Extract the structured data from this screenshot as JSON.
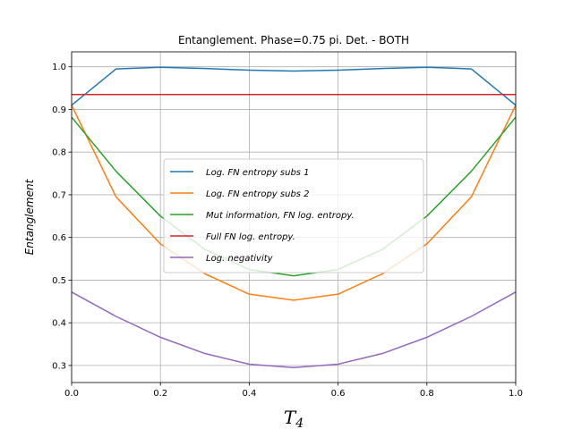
{
  "chart_data": {
    "type": "line",
    "title": "Entanglement. Phase=0.75 pi. Det. - BOTH",
    "xlabel_main": "T",
    "xlabel_sub": "4",
    "ylabel": "Entanglement",
    "xlim": [
      0.0,
      1.0
    ],
    "ylim": [
      0.26,
      1.035
    ],
    "xticks": [
      0.0,
      0.2,
      0.4,
      0.6,
      0.8,
      1.0
    ],
    "xtick_labels": [
      "0.0",
      "0.2",
      "0.4",
      "0.6",
      "0.8",
      "1.0"
    ],
    "yticks": [
      0.3,
      0.4,
      0.5,
      0.6,
      0.7,
      0.8,
      0.9,
      1.0
    ],
    "ytick_labels": [
      "0.3",
      "0.4",
      "0.5",
      "0.6",
      "0.7",
      "0.8",
      "0.9",
      "1.0"
    ],
    "grid": true,
    "legend_position": "center-left",
    "x": [
      0.0,
      0.1,
      0.2,
      0.3,
      0.4,
      0.5,
      0.6,
      0.7,
      0.8,
      0.9,
      1.0
    ],
    "series": [
      {
        "name": "Log. FN entropy subs 1",
        "color": "#1f77b4",
        "values": [
          0.91,
          0.995,
          0.999,
          0.996,
          0.992,
          0.99,
          0.992,
          0.996,
          0.999,
          0.995,
          0.91
        ]
      },
      {
        "name": "Log. FN entropy subs 2",
        "color": "#ff7f0e",
        "values": [
          0.91,
          0.695,
          0.585,
          0.515,
          0.467,
          0.453,
          0.467,
          0.515,
          0.585,
          0.695,
          0.91
        ]
      },
      {
        "name": "Mut information, FN log. entropy.",
        "color": "#2ca02c",
        "values": [
          0.882,
          0.755,
          0.65,
          0.572,
          0.525,
          0.51,
          0.525,
          0.572,
          0.65,
          0.755,
          0.882
        ]
      },
      {
        "name": "Full FN log. entropy.",
        "color": "#d62728",
        "values": [
          0.935,
          0.935,
          0.935,
          0.935,
          0.935,
          0.935,
          0.935,
          0.935,
          0.935,
          0.935,
          0.935
        ]
      },
      {
        "name": "Log. negativity",
        "color": "#9467bd",
        "values": [
          0.472,
          0.415,
          0.366,
          0.328,
          0.303,
          0.295,
          0.303,
          0.328,
          0.366,
          0.415,
          0.472
        ]
      }
    ]
  }
}
